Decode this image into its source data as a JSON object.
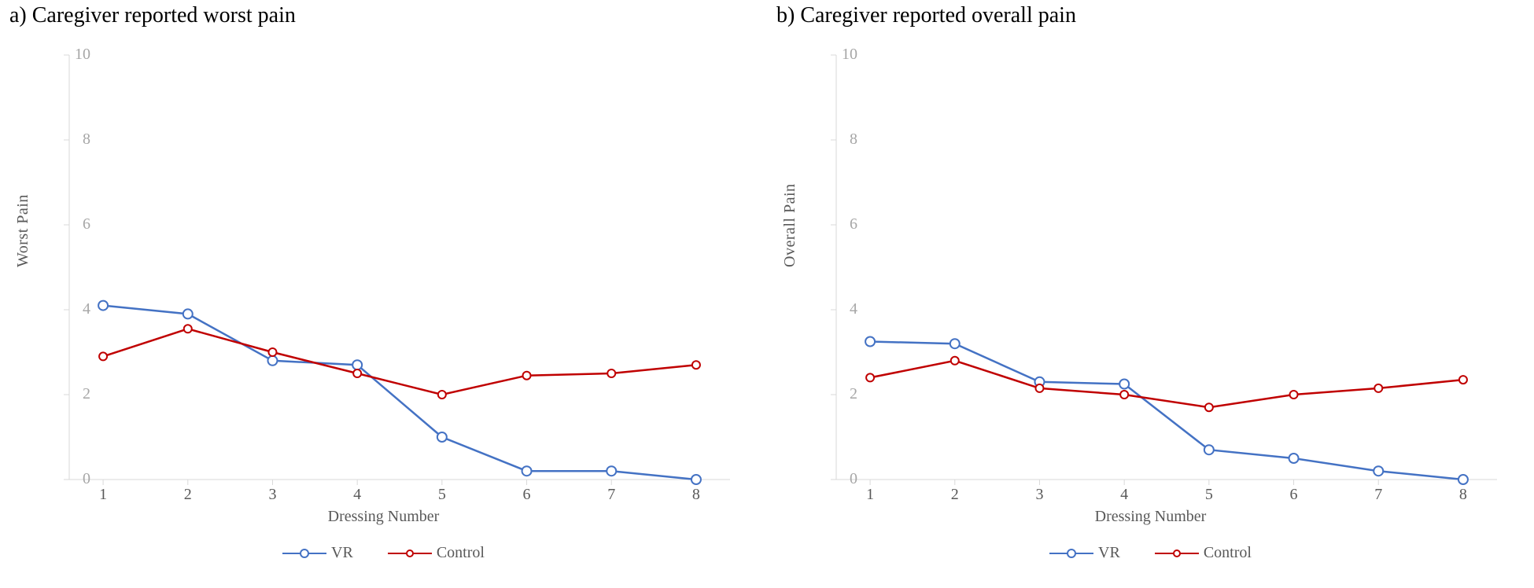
{
  "figure": {
    "background_color": "#ffffff",
    "font_family": "Times New Roman",
    "panel_title_fontsize": 28,
    "panel_title_color": "#000000",
    "axis_label_fontsize": 20,
    "axis_label_color": "#595959",
    "tick_fontsize": 20,
    "ytick_color": "#a6a6a6",
    "xtick_color": "#595959",
    "legend_fontsize": 20,
    "axis_line_color": "#d9d9d9",
    "axis_line_width": 1
  },
  "series_style": {
    "vr": {
      "color": "#4472c4",
      "line_width": 2.5,
      "marker": "circle-open",
      "marker_size": 12,
      "marker_stroke": 2
    },
    "control": {
      "color": "#c00000",
      "line_width": 2.5,
      "marker": "circle-open",
      "marker_size": 10,
      "marker_stroke": 2
    }
  },
  "legend": {
    "items": [
      {
        "key": "vr",
        "label": "VR"
      },
      {
        "key": "control",
        "label": "Control"
      }
    ]
  },
  "x": {
    "label": "Dressing Number",
    "lim": [
      0.6,
      8.4
    ],
    "ticks": [
      1,
      2,
      3,
      4,
      5,
      6,
      7,
      8
    ]
  },
  "y": {
    "lim": [
      0,
      10
    ],
    "ticks": [
      0,
      2,
      4,
      6,
      8,
      10
    ]
  },
  "panels": {
    "a": {
      "title": "a) Caregiver reported worst pain",
      "ylabel": "Worst Pain",
      "series": {
        "vr": [
          4.1,
          3.9,
          2.8,
          2.7,
          1.0,
          0.2,
          0.2,
          0.0
        ],
        "control": [
          2.9,
          3.55,
          3.0,
          2.5,
          2.0,
          2.45,
          2.5,
          2.7
        ]
      }
    },
    "b": {
      "title": "b) Caregiver reported overall pain",
      "ylabel": "Overall Pain",
      "series": {
        "vr": [
          3.25,
          3.2,
          2.3,
          2.25,
          0.7,
          0.5,
          0.2,
          0.0
        ],
        "control": [
          2.4,
          2.8,
          2.15,
          2.0,
          1.7,
          2.0,
          2.15,
          2.35
        ]
      }
    }
  }
}
